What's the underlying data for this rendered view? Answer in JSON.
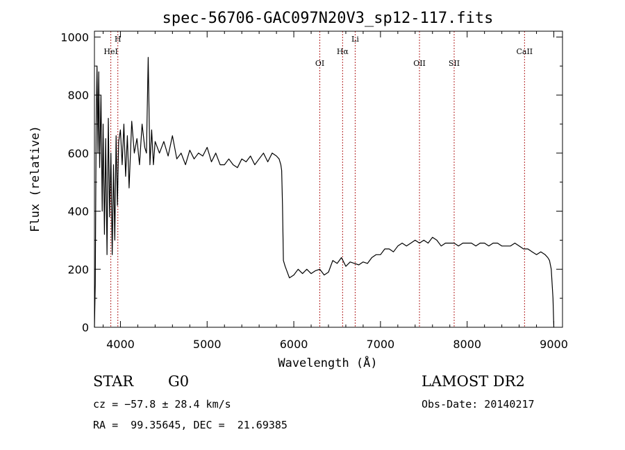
{
  "chart_data": {
    "type": "line",
    "title": "spec-56706-GAC097N20V3_sp12-117.fits",
    "xlabel": "Wavelength (Å)",
    "ylabel": "Flux (relative)",
    "xlim": [
      3700,
      9100
    ],
    "ylim": [
      0,
      1020
    ],
    "xticks": [
      4000,
      5000,
      6000,
      7000,
      8000,
      9000
    ],
    "yticks": [
      0,
      200,
      400,
      600,
      800,
      1000
    ],
    "grid": false,
    "series": [
      {
        "color": "#000000",
        "x": [
          3700,
          3710,
          3720,
          3730,
          3740,
          3750,
          3760,
          3775,
          3790,
          3800,
          3815,
          3830,
          3845,
          3860,
          3875,
          3890,
          3905,
          3920,
          3935,
          3950,
          3965,
          3980,
          4000,
          4020,
          4040,
          4060,
          4080,
          4100,
          4130,
          4160,
          4190,
          4220,
          4250,
          4280,
          4300,
          4320,
          4340,
          4360,
          4380,
          4400,
          4450,
          4500,
          4550,
          4600,
          4650,
          4700,
          4750,
          4800,
          4850,
          4900,
          4950,
          5000,
          5050,
          5100,
          5150,
          5200,
          5250,
          5300,
          5350,
          5400,
          5450,
          5500,
          5550,
          5600,
          5650,
          5700,
          5750,
          5800,
          5830,
          5850,
          5860,
          5870,
          5880,
          5900,
          5950,
          6000,
          6050,
          6100,
          6150,
          6200,
          6250,
          6300,
          6350,
          6400,
          6450,
          6500,
          6550,
          6600,
          6650,
          6700,
          6750,
          6800,
          6850,
          6900,
          6950,
          7000,
          7050,
          7100,
          7150,
          7200,
          7250,
          7300,
          7350,
          7400,
          7450,
          7500,
          7550,
          7600,
          7650,
          7700,
          7750,
          7800,
          7850,
          7900,
          7950,
          8000,
          8050,
          8100,
          8150,
          8200,
          8250,
          8300,
          8350,
          8400,
          8450,
          8500,
          8550,
          8600,
          8650,
          8700,
          8750,
          8800,
          8850,
          8900,
          8930,
          8950,
          8970,
          8990,
          9000
        ],
        "y": [
          0,
          150,
          700,
          900,
          600,
          880,
          550,
          800,
          400,
          700,
          320,
          650,
          250,
          720,
          380,
          600,
          250,
          560,
          300,
          660,
          420,
          640,
          680,
          560,
          700,
          520,
          660,
          480,
          710,
          600,
          650,
          560,
          700,
          620,
          600,
          930,
          560,
          680,
          560,
          640,
          600,
          640,
          590,
          660,
          580,
          600,
          560,
          610,
          580,
          600,
          590,
          620,
          570,
          600,
          560,
          560,
          580,
          560,
          550,
          580,
          570,
          590,
          560,
          580,
          600,
          570,
          600,
          590,
          580,
          560,
          540,
          420,
          230,
          210,
          170,
          180,
          200,
          185,
          200,
          185,
          195,
          200,
          180,
          190,
          230,
          220,
          240,
          210,
          225,
          220,
          215,
          225,
          220,
          240,
          250,
          250,
          270,
          270,
          260,
          280,
          290,
          280,
          290,
          300,
          290,
          300,
          290,
          310,
          300,
          280,
          290,
          290,
          290,
          280,
          290,
          290,
          290,
          280,
          290,
          290,
          280,
          290,
          290,
          280,
          280,
          280,
          290,
          280,
          270,
          270,
          260,
          250,
          260,
          250,
          240,
          230,
          200,
          100,
          0
        ]
      }
    ],
    "annotations": [
      {
        "x": 3889,
        "label": "HeI"
      },
      {
        "x": 3970,
        "label": "H"
      },
      {
        "x": 6300,
        "label": "OI"
      },
      {
        "x": 6563,
        "label": "Hα"
      },
      {
        "x": 6708,
        "label": "Li"
      },
      {
        "x": 7450,
        "label": "OII"
      },
      {
        "x": 7850,
        "label": "SII"
      },
      {
        "x": 8662,
        "label": "CaII"
      }
    ],
    "annotation_color": "#b22222"
  },
  "info": {
    "object_class": "STAR",
    "subclass": "G0",
    "survey": "LAMOST DR2",
    "cz": "cz = −57.8 ± 28.4 km/s",
    "obs_date": "Obs-Date: 20140217",
    "coords": "RA =  99.35645, DEC =  21.69385"
  }
}
